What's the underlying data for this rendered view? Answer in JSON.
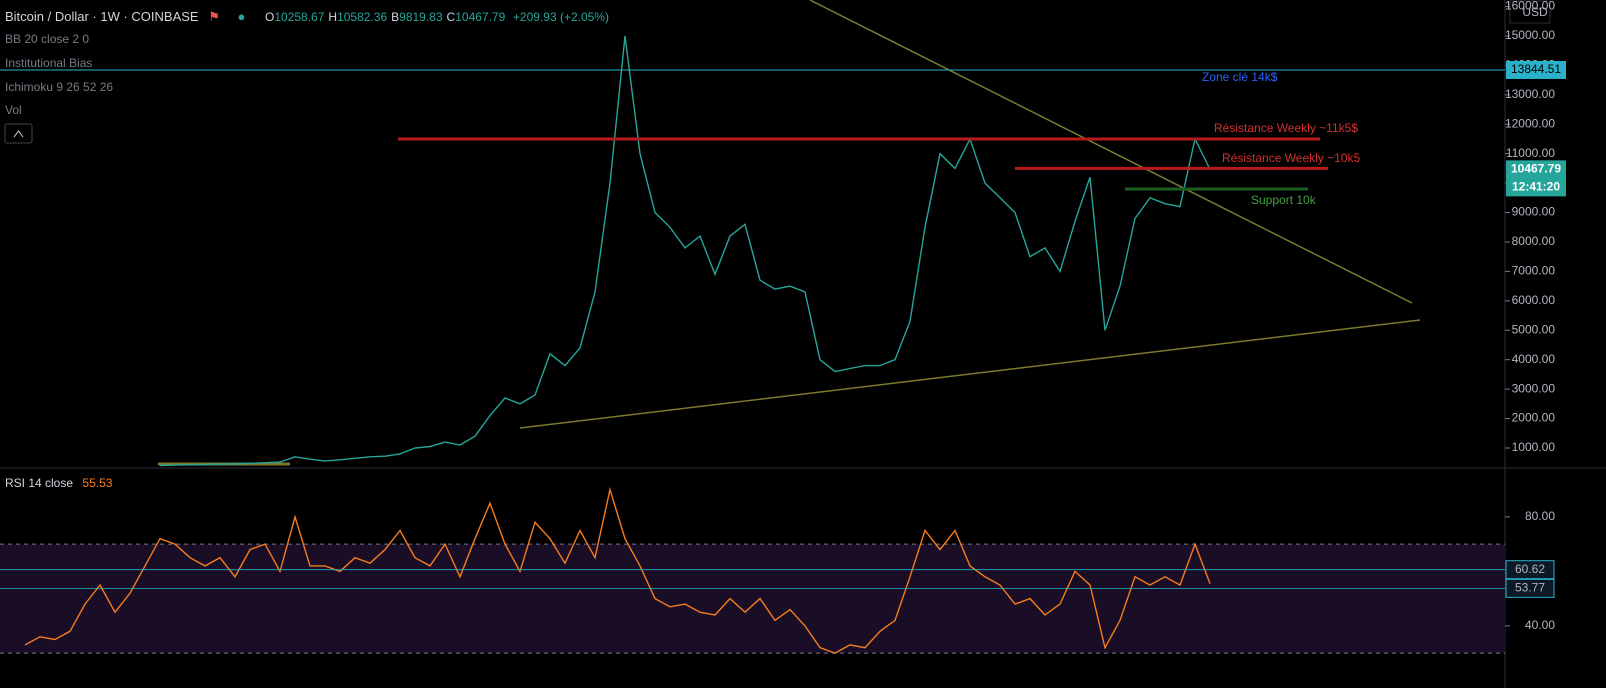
{
  "header": {
    "title": "Bitcoin / Dollar · 1W · COINBASE",
    "ohlc": [
      {
        "key": "O",
        "value": 10258.67
      },
      {
        "key": "H",
        "value": 10582.36
      },
      {
        "key": "B",
        "value": 9819.83
      },
      {
        "key": "C",
        "value": 10467.79
      }
    ],
    "change": "+209.93 (+2.05%)",
    "indicators": [
      "BB 20 close 2 0",
      "Institutional Bias",
      "Ichimoku 9 26 52 26",
      "Vol"
    ],
    "currency": "USD",
    "countdown": "12:41:20"
  },
  "chart_data": [
    {
      "type": "line",
      "color": "#26a69a",
      "values": [
        400,
        420,
        430,
        440,
        450,
        460,
        480,
        500,
        520,
        700,
        620,
        560,
        600,
        650,
        700,
        720,
        800,
        1000,
        1050,
        1200,
        1100,
        1400,
        2100,
        2700,
        2500,
        2800,
        4200,
        3800,
        4400,
        6300,
        10000,
        15000,
        11000,
        9000,
        8500,
        7800,
        8200,
        6900,
        8200,
        8600,
        6700,
        6400,
        6500,
        6300,
        4000,
        3600,
        3700,
        3800,
        3800,
        4000,
        5300,
        8500,
        11000,
        10500,
        11500,
        10000,
        9500,
        9000,
        7500,
        7800,
        7000,
        8700,
        10200,
        5000,
        6500,
        8800,
        9500,
        9300,
        9200,
        11500,
        10467.79
      ],
      "ylim": [
        354,
        16222
      ],
      "yticks": [
        {
          "value": 1000,
          "label": "1000.00"
        },
        {
          "value": 2000,
          "label": "2000.00"
        },
        {
          "value": 3000,
          "label": "3000.00"
        },
        {
          "value": 4000,
          "label": "4000.00"
        },
        {
          "value": 5000,
          "label": "5000.00"
        },
        {
          "value": 6000,
          "label": "6000.00"
        },
        {
          "value": 7000,
          "label": "7000.00"
        },
        {
          "value": 8000,
          "label": "8000.00"
        },
        {
          "value": 9000,
          "label": "9000.00"
        },
        {
          "value": 10000,
          "label": "10000.00"
        },
        {
          "value": 11000,
          "label": "11000.00"
        },
        {
          "value": 12000,
          "label": "12000.00"
        },
        {
          "value": 13000,
          "label": "13000.00"
        },
        {
          "value": 14000,
          "label": "14000.00"
        },
        {
          "value": 15000,
          "label": "15000.00"
        },
        {
          "value": 16000,
          "label": "16000.00"
        }
      ],
      "levels": [
        {
          "value": 13844.51,
          "color": "#2bb1c9",
          "label": "Zone clé 14k$",
          "label_color": "#2962ff"
        },
        {
          "value": 11500,
          "color": "#b71c1c",
          "label": "Résistance Weekly ~11k5$",
          "label_color": "#d32f2f"
        },
        {
          "value": 10500,
          "color": "#b71c1c",
          "label": "Résistance Weekly ~10k5",
          "label_color": "#d32f2f"
        },
        {
          "value": 9800,
          "color": "#1b5e20",
          "label": "Support 10k",
          "label_color": "#43a047"
        }
      ],
      "last": 10467.79
    },
    {
      "type": "line",
      "title": "RSI 14 close",
      "color": "#f57c1f",
      "values": [
        33,
        36,
        35,
        38,
        48,
        55,
        45,
        52,
        62,
        72,
        70,
        65,
        62,
        65,
        58,
        68,
        70,
        60,
        80,
        62,
        62,
        60,
        65,
        63,
        68,
        75,
        65,
        62,
        70,
        58,
        72,
        85,
        70,
        60,
        78,
        72,
        63,
        75,
        65,
        90,
        72,
        62,
        50,
        47,
        48,
        45,
        44,
        50,
        45,
        50,
        42,
        46,
        40,
        32,
        30,
        33,
        32,
        38,
        42,
        58,
        75,
        68,
        75,
        62,
        58,
        55,
        48,
        50,
        44,
        48,
        60,
        55,
        32,
        42,
        58,
        55,
        58,
        55,
        70,
        55.53
      ],
      "last": 55.53,
      "ylim": [
        17.2,
        97.2
      ],
      "yticks": [
        {
          "value": 40,
          "label": "40.00"
        },
        {
          "value": 80,
          "label": "80.00"
        }
      ],
      "band": [
        30,
        70
      ],
      "levels": [
        60.62,
        53.77
      ]
    }
  ]
}
